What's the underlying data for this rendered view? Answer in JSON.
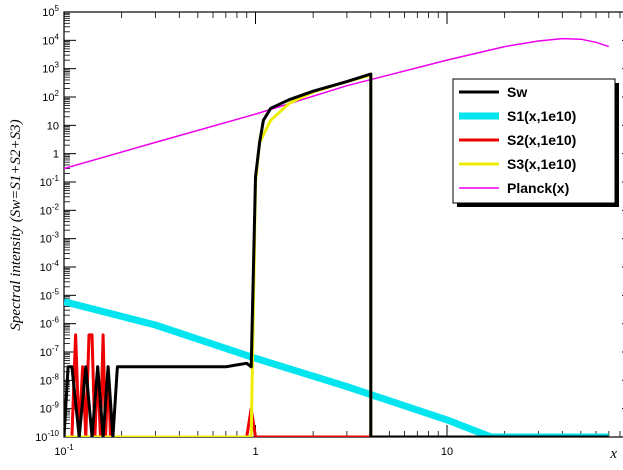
{
  "chart_data": {
    "type": "line",
    "title": "",
    "xlabel": "x",
    "ylabel": "Spectral intensity (Sw=S1+S2+S3)",
    "xscale": "log",
    "yscale": "log",
    "xlim": [
      0.1,
      70
    ],
    "ylim": [
      1e-10,
      100000
    ],
    "grid": false,
    "legend_position": "top-right",
    "x_tick_labels": [
      {
        "value": 0.1,
        "base": "10",
        "exp": "-1"
      },
      {
        "value": 1,
        "base": "1",
        "exp": ""
      },
      {
        "value": 10,
        "base": "10",
        "exp": ""
      }
    ],
    "y_tick_labels": [
      {
        "value": 1e-10,
        "base": "10",
        "exp": "-10"
      },
      {
        "value": 1e-09,
        "base": "10",
        "exp": "-9"
      },
      {
        "value": 1e-08,
        "base": "10",
        "exp": "-8"
      },
      {
        "value": 1e-07,
        "base": "10",
        "exp": "-7"
      },
      {
        "value": 1e-06,
        "base": "10",
        "exp": "-6"
      },
      {
        "value": 1e-05,
        "base": "10",
        "exp": "-5"
      },
      {
        "value": 0.0001,
        "base": "10",
        "exp": "-4"
      },
      {
        "value": 0.001,
        "base": "10",
        "exp": "-3"
      },
      {
        "value": 0.01,
        "base": "10",
        "exp": "-2"
      },
      {
        "value": 0.1,
        "base": "10",
        "exp": "-1"
      },
      {
        "value": 1,
        "base": "1",
        "exp": ""
      },
      {
        "value": 10,
        "base": "10",
        "exp": ""
      },
      {
        "value": 100,
        "base": "10",
        "exp": "2"
      },
      {
        "value": 1000,
        "base": "10",
        "exp": "3"
      },
      {
        "value": 10000,
        "base": "10",
        "exp": "4"
      },
      {
        "value": 100000,
        "base": "10",
        "exp": "5"
      }
    ],
    "series": [
      {
        "name": "S1(x,1e10)",
        "color": "#00e5ee",
        "x": [
          0.1,
          0.3,
          1,
          3,
          10,
          17,
          70
        ],
        "y": [
          6e-06,
          9e-07,
          6e-08,
          6e-09,
          4e-10,
          1e-10,
          1e-10
        ]
      },
      {
        "name": "S2(x,1e10)",
        "color": "#ee0000",
        "x": [
          0.1,
          0.11,
          0.115,
          0.12,
          0.125,
          0.13,
          0.135,
          0.14,
          0.145,
          0.15,
          0.155,
          0.16,
          0.165,
          0.17,
          0.175,
          0.18,
          0.185,
          0.19,
          0.7,
          0.9,
          0.95,
          1.0,
          70
        ],
        "y": [
          1e-10,
          1e-10,
          4e-07,
          1e-10,
          3e-08,
          1e-10,
          4e-07,
          4e-07,
          1e-10,
          3e-08,
          1e-10,
          4e-07,
          1e-10,
          3e-08,
          1e-10,
          1e-10,
          1e-10,
          1e-10,
          1e-10,
          1e-10,
          1e-09,
          1e-10,
          1e-10
        ]
      },
      {
        "name": "S3(x,1e10)",
        "color": "#eeee00",
        "x": [
          0.1,
          0.95,
          1.0,
          1.05,
          1.2,
          1.5,
          2,
          3,
          4.0,
          4.0,
          70
        ],
        "y": [
          1e-10,
          1e-10,
          0.1,
          2.5,
          15,
          60,
          150,
          350,
          600,
          1e-10,
          1e-10
        ]
      },
      {
        "name": "Planck(x)",
        "color": "#ee00ee",
        "x": [
          0.1,
          0.3,
          1,
          3,
          10,
          20,
          30,
          40,
          50,
          60,
          70
        ],
        "y": [
          0.3,
          2.5,
          25,
          250,
          2000,
          6000,
          9500,
          11500,
          11000,
          8500,
          6000
        ]
      },
      {
        "name": "Sw",
        "color": "#000000",
        "x": [
          0.1,
          0.105,
          0.11,
          0.12,
          0.13,
          0.14,
          0.15,
          0.16,
          0.17,
          0.18,
          0.19,
          0.2,
          0.25,
          0.3,
          0.4,
          0.5,
          0.6,
          0.7,
          0.8,
          0.9,
          0.95,
          1.0,
          1.05,
          1.1,
          1.2,
          1.5,
          2,
          3,
          4.0,
          4.0,
          4.5,
          70
        ],
        "y": [
          1e-10,
          3e-08,
          3e-08,
          1e-10,
          3e-08,
          1e-10,
          3e-08,
          1e-10,
          3e-08,
          1e-10,
          3e-08,
          3e-08,
          3e-08,
          3e-08,
          3e-08,
          3e-08,
          3e-08,
          3e-08,
          3.5e-08,
          4e-08,
          3e-08,
          0.15,
          2.5,
          15,
          40,
          80,
          160,
          350,
          650,
          1e-10,
          1e-10,
          1e-10
        ]
      }
    ],
    "legend": [
      {
        "label": "Sw",
        "color": "#000000",
        "width": 3
      },
      {
        "label": "S1(x,1e10)",
        "color": "#00e5ee",
        "width": 7
      },
      {
        "label": "S2(x,1e10)",
        "color": "#ee0000",
        "width": 3
      },
      {
        "label": "S3(x,1e10)",
        "color": "#eeee00",
        "width": 3
      },
      {
        "label": "Planck(x)",
        "color": "#ee00ee",
        "width": 1.5
      }
    ]
  }
}
